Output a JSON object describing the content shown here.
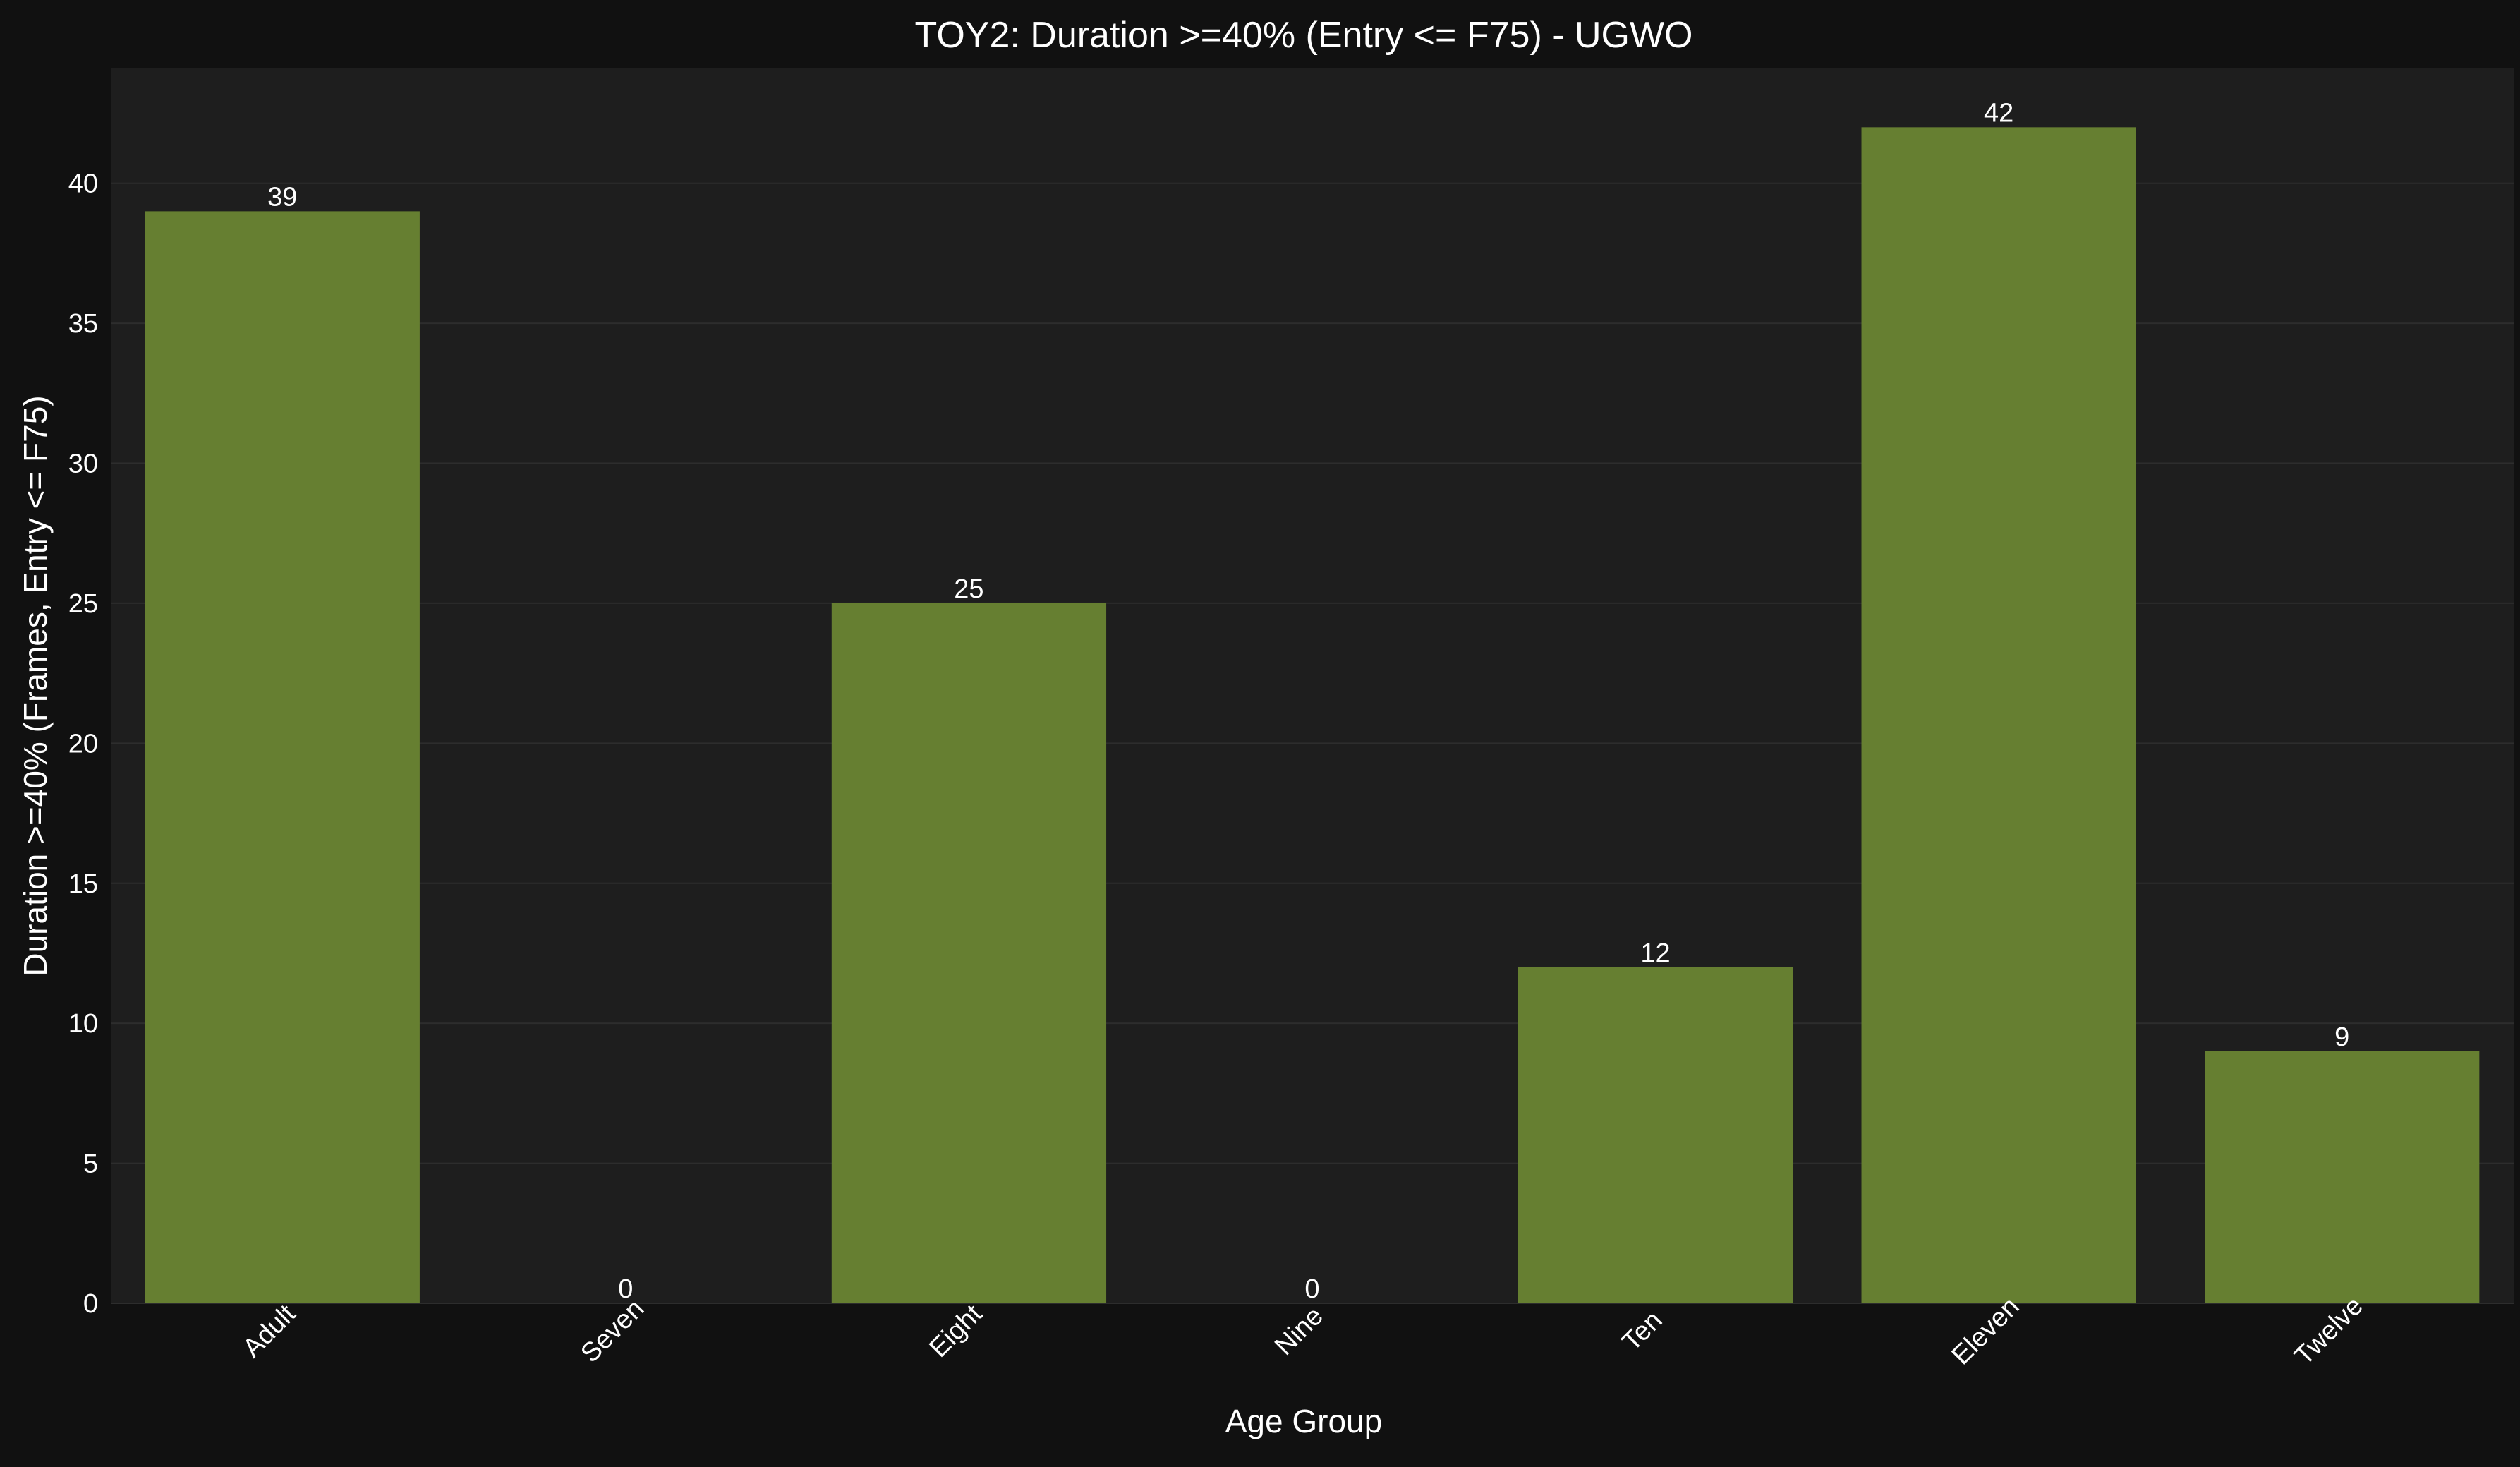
{
  "chart_data": {
    "type": "bar",
    "title": "TOY2: Duration >=40% (Entry <= F75) - UGWO",
    "xlabel": "Age Group",
    "ylabel": "Duration >=40% (Frames, Entry <= F75)",
    "categories": [
      "Adult",
      "Seven",
      "Eight",
      "Nine",
      "Ten",
      "Eleven",
      "Twelve"
    ],
    "values": [
      39,
      0,
      25,
      0,
      12,
      42,
      9
    ],
    "data_labels": [
      "39",
      "0",
      "25",
      "0",
      "12",
      "42",
      "9"
    ],
    "ylim": [
      0,
      44.1
    ],
    "yticks": [
      0,
      5,
      10,
      15,
      20,
      25,
      30,
      35,
      40
    ],
    "grid": "horizontal",
    "legend": "none",
    "colors": {
      "background": "#111111",
      "plot_background": "#1e1e1e",
      "bar": "#667f31",
      "grid": "#2d2d2d",
      "text": "#ffffff"
    }
  }
}
